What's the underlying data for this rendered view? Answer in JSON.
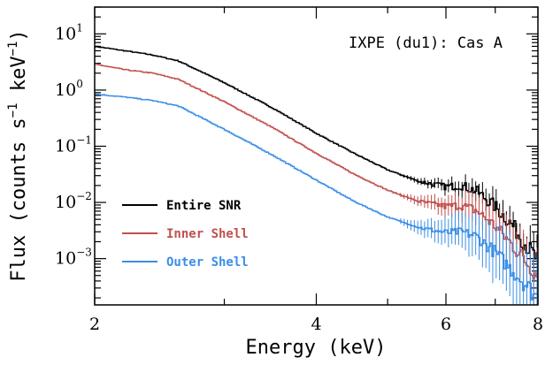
{
  "chart_data": {
    "type": "line",
    "title": "",
    "annotation": "IXPE (du1): Cas A",
    "xlabel": "Energy (keV)",
    "ylabel_main": "Flux (counts s",
    "ylabel_exp1": "−1",
    "ylabel_mid": " keV",
    "ylabel_exp2": "−1",
    "ylabel_end": ")",
    "x_scale": "log",
    "y_scale": "log",
    "xlim": [
      2,
      8
    ],
    "ylim": [
      0.00015,
      30
    ],
    "x_ticks": [
      {
        "value": 2,
        "label": "2"
      },
      {
        "value": 4,
        "label": "4"
      },
      {
        "value": 6,
        "label": "6"
      },
      {
        "value": 8,
        "label": "8"
      }
    ],
    "y_ticks": [
      {
        "value": 10,
        "base": "10",
        "exp": "1"
      },
      {
        "value": 1,
        "base": "10",
        "exp": "0"
      },
      {
        "value": 0.1,
        "base": "10",
        "exp": "−1"
      },
      {
        "value": 0.01,
        "base": "10",
        "exp": "−2"
      },
      {
        "value": 0.001,
        "base": "10",
        "exp": "−3"
      }
    ],
    "legend_position": "bottom-left",
    "series": [
      {
        "name": "Entire SNR",
        "color": "#000000",
        "x": [
          2.0,
          2.2,
          2.4,
          2.6,
          3.0,
          3.5,
          4.0,
          4.5,
          5.0,
          5.5,
          6.0,
          6.3,
          6.6,
          7.0,
          7.4,
          7.7,
          8.0
        ],
        "y": [
          6.0,
          5.0,
          4.2,
          3.3,
          1.35,
          0.47,
          0.17,
          0.075,
          0.038,
          0.024,
          0.019,
          0.02,
          0.016,
          0.0085,
          0.0038,
          0.0018,
          0.0009
        ]
      },
      {
        "name": "Inner Shell",
        "color": "#c0504d",
        "x": [
          2.0,
          2.2,
          2.4,
          2.6,
          3.0,
          3.5,
          4.0,
          4.5,
          5.0,
          5.5,
          6.0,
          6.3,
          6.6,
          7.0,
          7.4,
          7.7,
          8.0
        ],
        "y": [
          2.9,
          2.3,
          2.0,
          1.55,
          0.62,
          0.21,
          0.075,
          0.032,
          0.0165,
          0.0105,
          0.0085,
          0.0088,
          0.0072,
          0.0038,
          0.0017,
          0.0009,
          0.0005
        ]
      },
      {
        "name": "Outer Shell",
        "color": "#3a8ee6",
        "x": [
          2.0,
          2.2,
          2.4,
          2.6,
          3.0,
          3.5,
          4.0,
          4.5,
          5.0,
          5.5,
          6.0,
          6.3,
          6.6,
          7.0,
          7.4,
          7.7,
          8.0
        ],
        "y": [
          0.85,
          0.75,
          0.65,
          0.52,
          0.2,
          0.068,
          0.025,
          0.0105,
          0.0055,
          0.0036,
          0.0029,
          0.003,
          0.0025,
          0.0013,
          0.0006,
          0.00035,
          0.0002
        ]
      }
    ]
  }
}
